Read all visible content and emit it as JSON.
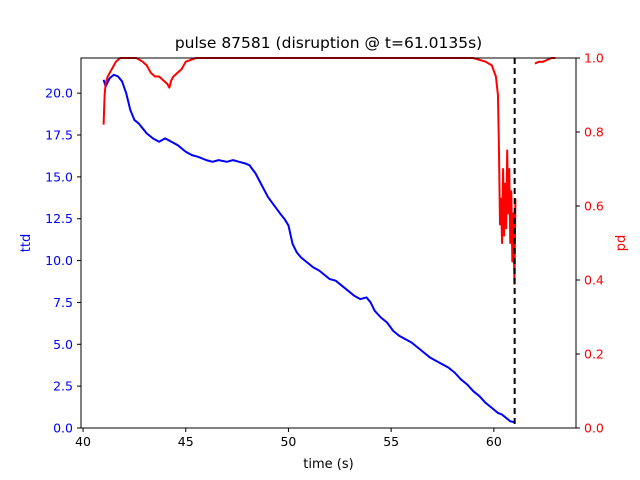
{
  "chart_data": {
    "type": "line",
    "title": "pulse 87581 (disruption @ t=61.0135s)",
    "xlabel": "time (s)",
    "ylabel_left": "ttd",
    "ylabel_right": "pd",
    "xlim": [
      39.9,
      64.0
    ],
    "ylim_left": [
      0,
      22.1
    ],
    "ylim_right": [
      0,
      1.0
    ],
    "x_ticks": [
      40,
      45,
      50,
      55,
      60
    ],
    "x_tick_labels": [
      "40",
      "45",
      "50",
      "55",
      "60"
    ],
    "y_left_ticks": [
      0,
      2.5,
      5,
      7.5,
      10,
      12.5,
      15,
      17.5,
      20
    ],
    "y_left_tick_labels": [
      "0.0",
      "2.5",
      "5.0",
      "7.5",
      "10.0",
      "12.5",
      "15.0",
      "17.5",
      "20.0"
    ],
    "y_right_ticks": [
      0,
      0.2,
      0.4,
      0.6,
      0.8,
      1.0
    ],
    "y_right_tick_labels": [
      "0.0",
      "0.2",
      "0.4",
      "0.6",
      "0.8",
      "1.0"
    ],
    "disruption_time": 61.0135,
    "colors": {
      "ttd": "#0000ff",
      "pd": "#ff0000",
      "disruption_line": "#000000",
      "axis": "#000000"
    },
    "series": [
      {
        "name": "ttd",
        "axis": "left",
        "x": [
          41.0,
          41.1,
          41.3,
          41.5,
          41.7,
          41.9,
          42.1,
          42.3,
          42.5,
          42.7,
          42.9,
          43.1,
          43.4,
          43.7,
          44.0,
          44.3,
          44.6,
          45.0,
          45.3,
          45.6,
          46.0,
          46.3,
          46.6,
          47.0,
          47.3,
          47.6,
          47.9,
          48.1,
          48.4,
          48.7,
          49.0,
          49.3,
          49.6,
          49.8,
          50.0,
          50.2,
          50.4,
          50.6,
          50.9,
          51.2,
          51.5,
          51.8,
          52.0,
          52.3,
          52.6,
          52.9,
          53.2,
          53.5,
          53.8,
          54.0,
          54.2,
          54.5,
          54.8,
          55.1,
          55.4,
          55.7,
          56.0,
          56.3,
          56.6,
          56.9,
          57.2,
          57.5,
          57.8,
          58.1,
          58.4,
          58.7,
          59.0,
          59.3,
          59.6,
          59.9,
          60.2,
          60.4,
          60.6,
          60.8,
          61.0
        ],
        "y": [
          20.8,
          20.4,
          20.9,
          21.1,
          21.0,
          20.7,
          20.0,
          19.0,
          18.4,
          18.2,
          17.9,
          17.6,
          17.3,
          17.1,
          17.3,
          17.1,
          16.9,
          16.5,
          16.3,
          16.2,
          16.0,
          15.9,
          16.0,
          15.9,
          16.0,
          15.9,
          15.8,
          15.7,
          15.2,
          14.5,
          13.8,
          13.3,
          12.8,
          12.5,
          12.1,
          11.0,
          10.5,
          10.2,
          9.9,
          9.6,
          9.4,
          9.1,
          8.9,
          8.8,
          8.5,
          8.2,
          7.9,
          7.7,
          7.8,
          7.5,
          7.0,
          6.6,
          6.3,
          5.8,
          5.5,
          5.3,
          5.1,
          4.8,
          4.5,
          4.2,
          4.0,
          3.8,
          3.6,
          3.3,
          2.9,
          2.6,
          2.2,
          1.9,
          1.5,
          1.2,
          0.9,
          0.8,
          0.6,
          0.4,
          0.35
        ]
      },
      {
        "name": "pd",
        "axis": "right",
        "x": [
          41.0,
          41.05,
          41.1,
          41.2,
          41.3,
          41.4,
          41.5,
          41.6,
          41.8,
          42.0,
          42.3,
          42.6,
          42.9,
          43.1,
          43.3,
          43.5,
          43.7,
          43.9,
          44.1,
          44.2,
          44.3,
          44.4,
          44.6,
          44.8,
          45.0,
          45.5,
          46.0,
          47.0,
          48.0,
          49.0,
          50.0,
          51.0,
          52.0,
          53.0,
          54.0,
          55.0,
          56.0,
          57.0,
          58.0,
          59.0,
          59.6,
          59.9,
          60.1,
          60.2,
          60.25,
          60.3,
          60.35,
          60.4,
          60.45,
          60.5,
          60.55,
          60.6,
          60.65,
          60.7,
          60.75,
          60.8,
          60.85,
          60.9,
          60.95,
          61.0,
          61.05
        ],
        "y": [
          0.82,
          0.9,
          0.93,
          0.95,
          0.96,
          0.97,
          0.98,
          0.99,
          1.0,
          1.0,
          1.0,
          1.0,
          0.99,
          0.98,
          0.96,
          0.95,
          0.95,
          0.94,
          0.93,
          0.92,
          0.94,
          0.95,
          0.96,
          0.97,
          0.99,
          1.0,
          1.0,
          1.0,
          1.0,
          1.0,
          1.0,
          1.0,
          1.0,
          1.0,
          1.0,
          1.0,
          1.0,
          1.0,
          1.0,
          1.0,
          0.99,
          0.98,
          0.95,
          0.9,
          0.75,
          0.55,
          0.62,
          0.5,
          0.7,
          0.52,
          0.66,
          0.54,
          0.75,
          0.58,
          0.7,
          0.5,
          0.64,
          0.45,
          0.58,
          0.39,
          0.62
        ]
      },
      {
        "name": "pd",
        "axis": "right",
        "x": [
          62.0,
          62.2,
          62.4,
          62.6,
          62.8,
          63.0
        ],
        "y": [
          0.985,
          0.99,
          0.99,
          0.995,
          1.0,
          1.0
        ]
      }
    ]
  }
}
